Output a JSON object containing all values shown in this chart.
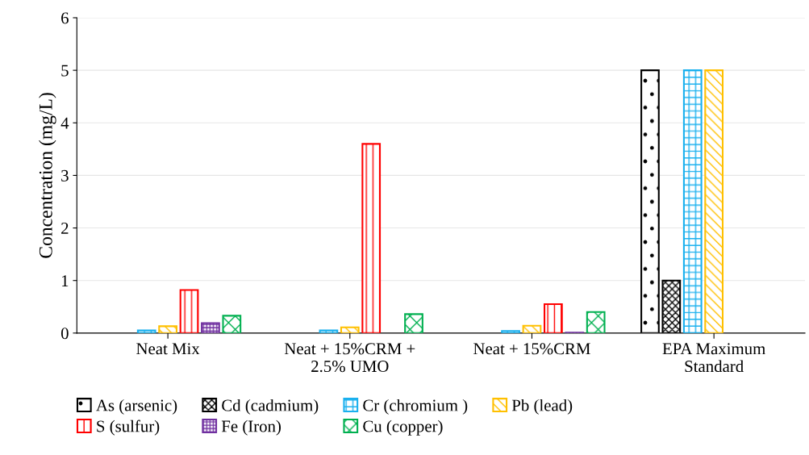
{
  "chart_data": {
    "type": "bar",
    "ylabel": "Concentration (mg/L)",
    "categories": [
      "Neat Mix",
      "Neat + 15%CRM +\n2.5% UMO",
      "Neat + 15%CRM",
      "EPA Maximum\nStandard"
    ],
    "series": [
      {
        "name": "As (arsenic)",
        "color": "#000000",
        "values": [
          null,
          null,
          null,
          5
        ]
      },
      {
        "name": "Cd (cadmium)",
        "color": "#000000",
        "values": [
          null,
          null,
          null,
          1
        ]
      },
      {
        "name": "Cr (chromium )",
        "color": "#1ab0ee",
        "values": [
          0.05,
          0.05,
          0.04,
          5
        ]
      },
      {
        "name": "Pb (lead)",
        "color": "#ffc000",
        "values": [
          0.13,
          0.11,
          0.14,
          5
        ]
      },
      {
        "name": "S (sulfur)",
        "color": "#ff0000",
        "values": [
          0.82,
          3.6,
          0.55,
          null
        ]
      },
      {
        "name": "Fe (Iron)",
        "color": "#7030a0",
        "values": [
          0.19,
          null,
          0.01,
          null
        ]
      },
      {
        "name": "Cu (copper)",
        "color": "#00b050",
        "values": [
          0.33,
          0.36,
          0.4,
          null
        ]
      }
    ],
    "ylim": [
      0,
      6
    ],
    "yticks": [
      0,
      1,
      2,
      3,
      4,
      5,
      6
    ],
    "grid": "y",
    "legend": "bottom"
  }
}
